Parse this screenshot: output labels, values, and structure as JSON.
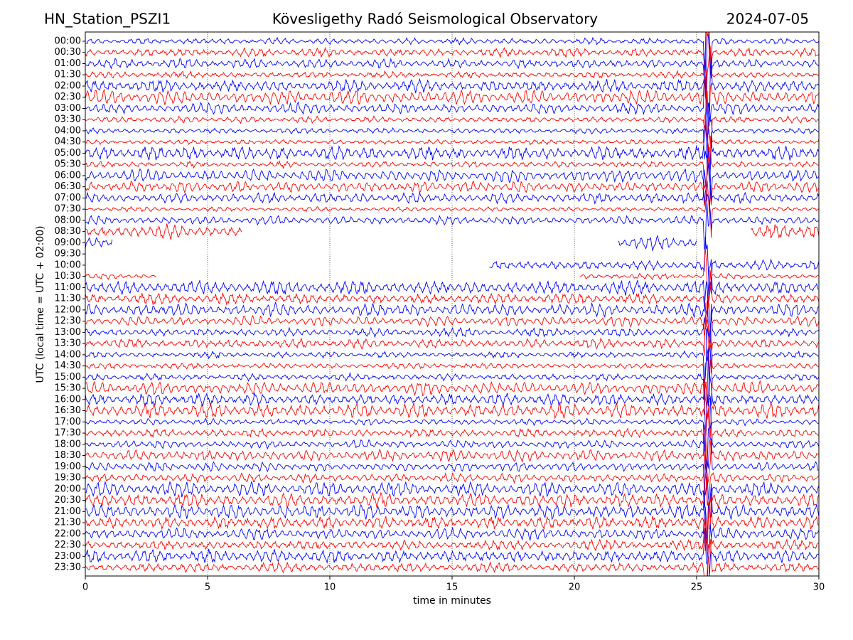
{
  "chart_data": {
    "type": "helicorder",
    "title_left": "HN_Station_PSZI1",
    "title": "Kövesligethy Radó Seismological Observatory",
    "title_right": "2024-07-05",
    "xlabel": "time in minutes",
    "ylabel": "UTC (local time = UTC + 02:00)",
    "categories": [
      "00:00",
      "00:30",
      "01:00",
      "01:30",
      "02:00",
      "02:30",
      "03:00",
      "03:30",
      "04:00",
      "04:30",
      "05:00",
      "05:30",
      "06:00",
      "06:30",
      "07:00",
      "07:30",
      "08:00",
      "08:30",
      "09:00",
      "09:30",
      "10:00",
      "10:30",
      "11:00",
      "11:30",
      "12:00",
      "12:30",
      "13:00",
      "13:30",
      "14:00",
      "14:30",
      "15:00",
      "15:30",
      "16:00",
      "16:30",
      "17:00",
      "17:30",
      "18:00",
      "18:30",
      "19:00",
      "19:30",
      "20:00",
      "20:30",
      "21:00",
      "21:30",
      "22:00",
      "22:30",
      "23:00",
      "23:30"
    ],
    "colors": [
      "#0000ff",
      "#ff0000"
    ],
    "xlim": [
      0,
      30
    ],
    "xticks": [
      0,
      5,
      10,
      15,
      20,
      25,
      30
    ],
    "grid": true
  }
}
